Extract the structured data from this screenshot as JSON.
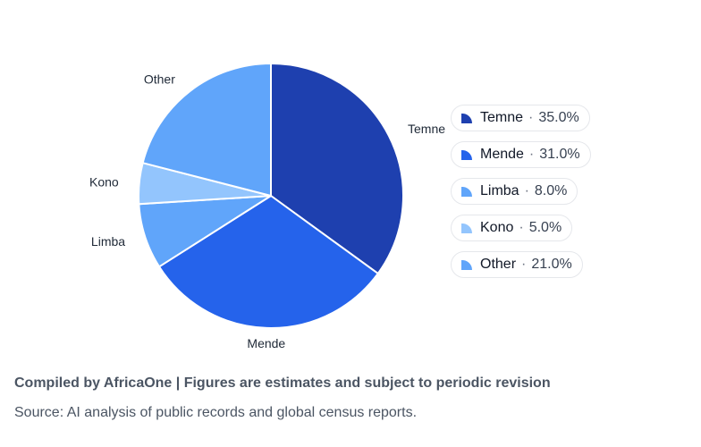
{
  "chart_data": {
    "type": "pie",
    "categories": [
      "Temne",
      "Mende",
      "Limba",
      "Kono",
      "Other"
    ],
    "values": [
      35.0,
      31.0,
      8.0,
      5.0,
      21.0
    ],
    "colors": [
      "#1e40af",
      "#2563eb",
      "#60a5fa",
      "#93c5fd",
      "#60a5fa"
    ],
    "legend_placement": "right",
    "value_format": "percent"
  },
  "legend": {
    "separator": "·",
    "items": [
      {
        "name": "Temne",
        "value": "35.0%"
      },
      {
        "name": "Mende",
        "value": "31.0%"
      },
      {
        "name": "Limba",
        "value": "8.0%"
      },
      {
        "name": "Kono",
        "value": "5.0%"
      },
      {
        "name": "Other",
        "value": "21.0%"
      }
    ]
  },
  "footer": {
    "note": "Compiled by AfricaOne | Figures are estimates and subject to periodic revision",
    "source": "Source: AI analysis of public records and global census reports."
  }
}
